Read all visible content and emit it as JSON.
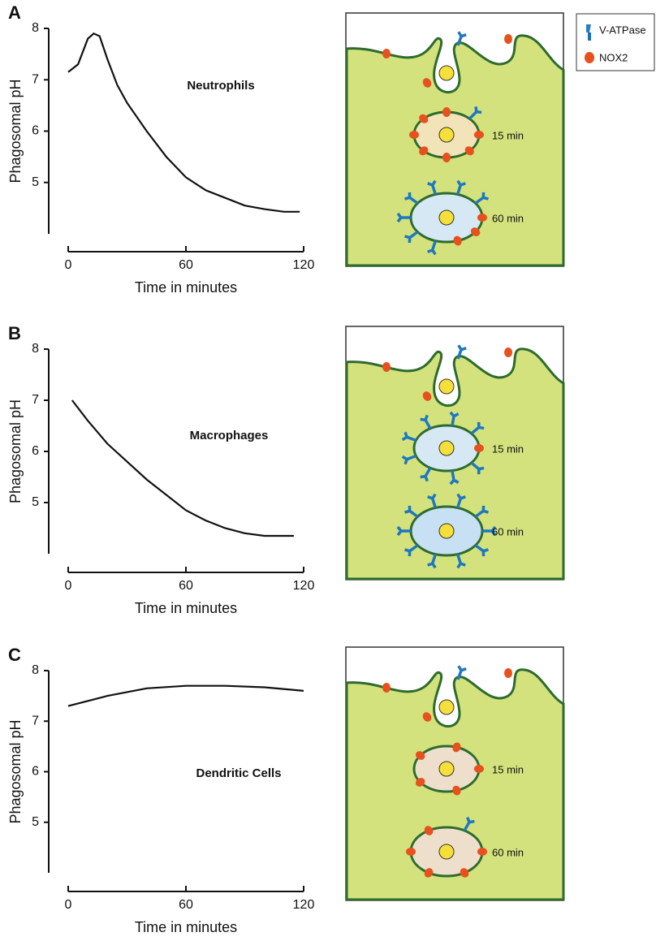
{
  "chart_data": [
    {
      "type": "line",
      "panel_label": "A",
      "annotation": "Neutrophils",
      "ylabel": "Phagosomal pH",
      "xlabel": "Time in minutes",
      "x": [
        0,
        5,
        10,
        13,
        16,
        20,
        25,
        30,
        40,
        50,
        60,
        70,
        80,
        90,
        100,
        110,
        118
      ],
      "values": [
        7.15,
        7.3,
        7.8,
        7.9,
        7.85,
        7.4,
        6.9,
        6.55,
        6.0,
        5.5,
        5.1,
        4.85,
        4.7,
        4.55,
        4.48,
        4.43,
        4.43
      ],
      "color": "#111111",
      "xlim": [
        0,
        120
      ],
      "xticks": [
        0,
        60,
        120
      ],
      "ylim": [
        4,
        8
      ],
      "yticks": [
        5,
        6,
        7,
        8
      ]
    },
    {
      "type": "line",
      "panel_label": "B",
      "annotation": "Macrophages",
      "ylabel": "Phagosomal pH",
      "xlabel": "Time in minutes",
      "x": [
        2,
        10,
        20,
        30,
        40,
        50,
        60,
        70,
        80,
        90,
        100,
        115
      ],
      "values": [
        7.0,
        6.6,
        6.15,
        5.8,
        5.45,
        5.15,
        4.85,
        4.65,
        4.5,
        4.4,
        4.35,
        4.35
      ],
      "color": "#111111",
      "xlim": [
        0,
        120
      ],
      "xticks": [
        0,
        60,
        120
      ],
      "ylim": [
        4,
        8
      ],
      "yticks": [
        5,
        6,
        7,
        8
      ]
    },
    {
      "type": "line",
      "panel_label": "C",
      "annotation": "Dendritic Cells",
      "ylabel": "Phagosomal pH",
      "xlabel": "Time in minutes",
      "x": [
        0,
        20,
        40,
        60,
        80,
        100,
        120
      ],
      "values": [
        7.3,
        7.5,
        7.65,
        7.7,
        7.7,
        7.67,
        7.6
      ],
      "color": "#111111",
      "xlim": [
        0,
        120
      ],
      "xticks": [
        0,
        60,
        120
      ],
      "ylim": [
        4,
        8
      ],
      "yticks": [
        5,
        6,
        7,
        8
      ]
    }
  ],
  "legend": {
    "items": [
      "V-ATPase",
      "NOX2"
    ]
  },
  "diagrams": [
    {
      "labels": [
        "15 min",
        "60 min"
      ]
    },
    {
      "labels": [
        "15 min",
        "60 min"
      ]
    },
    {
      "labels": [
        "15 min",
        "60 min"
      ]
    }
  ]
}
